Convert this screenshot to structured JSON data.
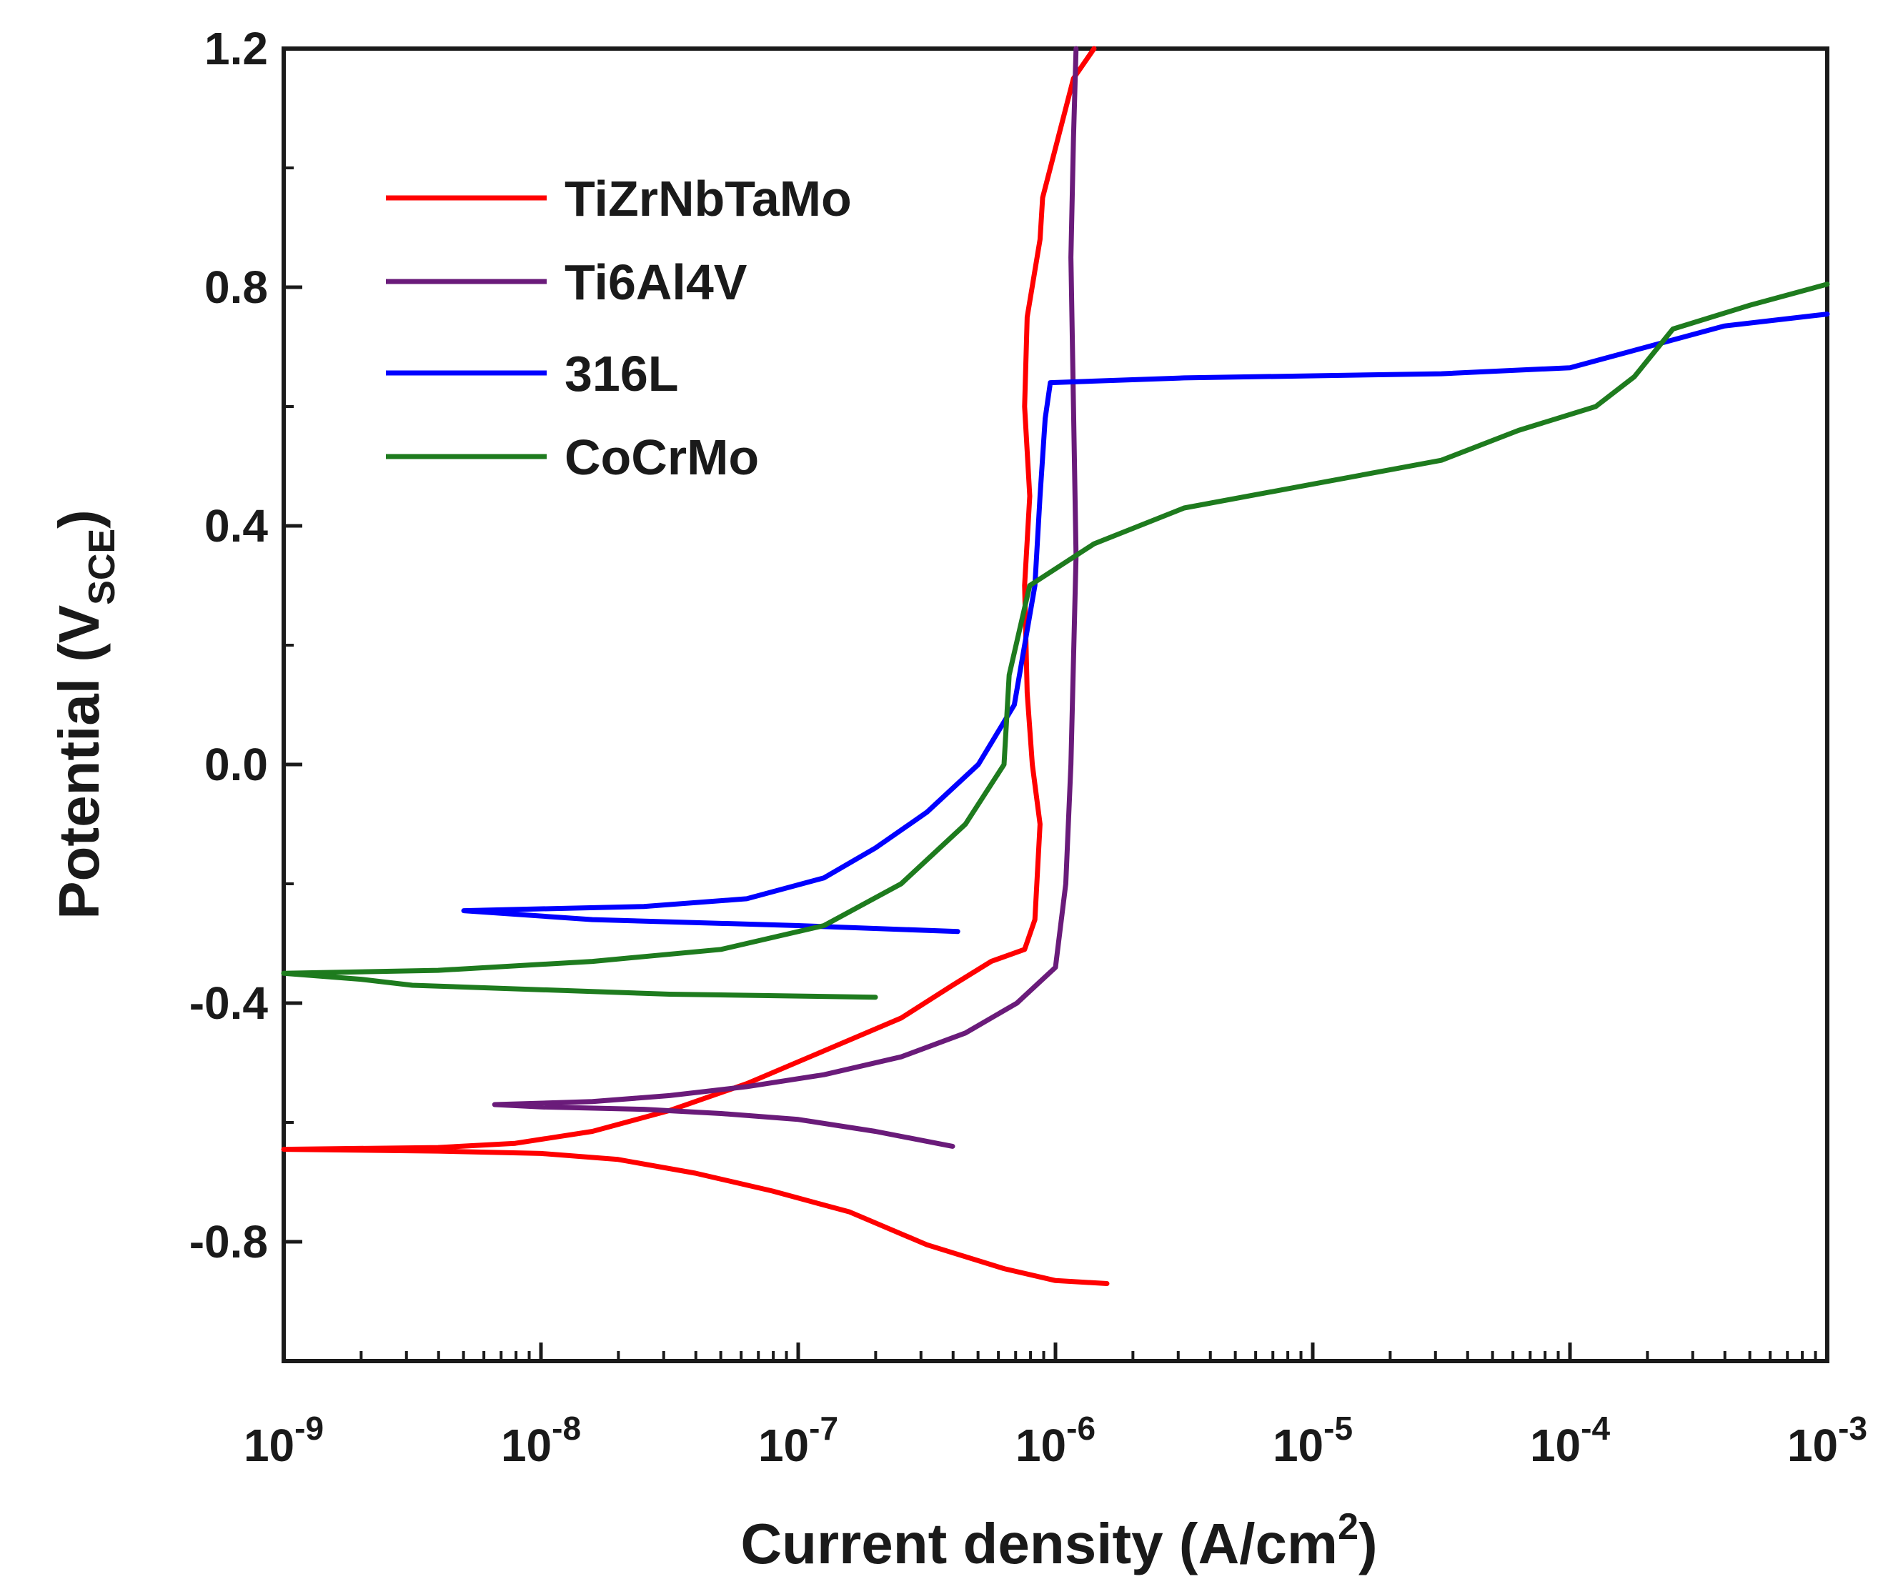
{
  "chart_data": {
    "type": "line",
    "title": "",
    "xlabel": {
      "main": "Current density (A/cm",
      "sup": "2",
      "end": ")"
    },
    "ylabel": {
      "main": "Potential (V",
      "sub": "SCE",
      "end": ")"
    },
    "x_scale": "log",
    "xlim_exp": [
      -9,
      -3
    ],
    "ylim": [
      -1.0,
      1.2
    ],
    "x_ticks": [
      {
        "base": "10",
        "exp": "-9"
      },
      {
        "base": "10",
        "exp": "-8"
      },
      {
        "base": "10",
        "exp": "-7"
      },
      {
        "base": "10",
        "exp": "-6"
      },
      {
        "base": "10",
        "exp": "-5"
      },
      {
        "base": "10",
        "exp": "-4"
      },
      {
        "base": "10",
        "exp": "-3"
      }
    ],
    "y_ticks": [
      "1.2",
      "0.8",
      "0.4",
      "0.0",
      "-0.4",
      "-0.8"
    ],
    "y_tick_values": [
      1.2,
      0.8,
      0.4,
      0.0,
      -0.4,
      -0.8
    ],
    "legend_position": "top-left",
    "grid": false,
    "series": [
      {
        "name": "TiZrNbTaMo",
        "color": "#ff0000",
        "points": [
          [
            -5.8,
            -0.87
          ],
          [
            -6.0,
            -0.865
          ],
          [
            -6.2,
            -0.845
          ],
          [
            -6.5,
            -0.805
          ],
          [
            -6.8,
            -0.75
          ],
          [
            -7.1,
            -0.715
          ],
          [
            -7.4,
            -0.685
          ],
          [
            -7.7,
            -0.662
          ],
          [
            -8.0,
            -0.652
          ],
          [
            -8.4,
            -0.648
          ],
          [
            -9.0,
            -0.645
          ],
          [
            -8.4,
            -0.642
          ],
          [
            -8.1,
            -0.635
          ],
          [
            -7.8,
            -0.615
          ],
          [
            -7.5,
            -0.58
          ],
          [
            -7.2,
            -0.535
          ],
          [
            -6.9,
            -0.48
          ],
          [
            -6.6,
            -0.425
          ],
          [
            -6.4,
            -0.37
          ],
          [
            -6.25,
            -0.33
          ],
          [
            -6.12,
            -0.31
          ],
          [
            -6.08,
            -0.26
          ],
          [
            -6.06,
            -0.1
          ],
          [
            -6.09,
            0.0
          ],
          [
            -6.11,
            0.12
          ],
          [
            -6.12,
            0.3
          ],
          [
            -6.1,
            0.45
          ],
          [
            -6.12,
            0.6
          ],
          [
            -6.11,
            0.75
          ],
          [
            -6.06,
            0.88
          ],
          [
            -6.05,
            0.95
          ],
          [
            -5.99,
            1.05
          ],
          [
            -5.93,
            1.15
          ],
          [
            -5.85,
            1.2
          ]
        ]
      },
      {
        "name": "Ti6Al4V",
        "color": "#6a1b7a",
        "points": [
          [
            -6.4,
            -0.64
          ],
          [
            -6.7,
            -0.615
          ],
          [
            -7.0,
            -0.595
          ],
          [
            -7.3,
            -0.585
          ],
          [
            -7.6,
            -0.578
          ],
          [
            -8.0,
            -0.574
          ],
          [
            -8.18,
            -0.57
          ],
          [
            -7.8,
            -0.565
          ],
          [
            -7.5,
            -0.555
          ],
          [
            -7.2,
            -0.54
          ],
          [
            -6.9,
            -0.52
          ],
          [
            -6.6,
            -0.49
          ],
          [
            -6.35,
            -0.45
          ],
          [
            -6.15,
            -0.4
          ],
          [
            -6.0,
            -0.34
          ],
          [
            -5.96,
            -0.2
          ],
          [
            -5.94,
            0.0
          ],
          [
            -5.92,
            0.35
          ],
          [
            -5.93,
            0.6
          ],
          [
            -5.94,
            0.85
          ],
          [
            -5.93,
            1.05
          ],
          [
            -5.92,
            1.2
          ]
        ]
      },
      {
        "name": "316L",
        "color": "#0000ff",
        "points": [
          [
            -6.38,
            -0.28
          ],
          [
            -7.0,
            -0.27
          ],
          [
            -7.8,
            -0.26
          ],
          [
            -8.3,
            -0.245
          ],
          [
            -7.6,
            -0.238
          ],
          [
            -7.2,
            -0.225
          ],
          [
            -6.9,
            -0.19
          ],
          [
            -6.7,
            -0.14
          ],
          [
            -6.5,
            -0.08
          ],
          [
            -6.3,
            0.0
          ],
          [
            -6.16,
            0.1
          ],
          [
            -6.08,
            0.3
          ],
          [
            -6.06,
            0.45
          ],
          [
            -6.04,
            0.58
          ],
          [
            -6.02,
            0.64
          ],
          [
            -5.5,
            0.648
          ],
          [
            -4.5,
            0.655
          ],
          [
            -4.0,
            0.665
          ],
          [
            -3.7,
            0.7
          ],
          [
            -3.4,
            0.735
          ],
          [
            -3.0,
            0.755
          ]
        ]
      },
      {
        "name": "CoCrMo",
        "color": "#1e7b1e",
        "points": [
          [
            -6.7,
            -0.39
          ],
          [
            -7.5,
            -0.385
          ],
          [
            -8.5,
            -0.37
          ],
          [
            -8.7,
            -0.36
          ],
          [
            -9.0,
            -0.35
          ],
          [
            -8.4,
            -0.345
          ],
          [
            -7.8,
            -0.33
          ],
          [
            -7.3,
            -0.31
          ],
          [
            -6.9,
            -0.27
          ],
          [
            -6.6,
            -0.2
          ],
          [
            -6.35,
            -0.1
          ],
          [
            -6.2,
            0.0
          ],
          [
            -6.18,
            0.15
          ],
          [
            -6.1,
            0.3
          ],
          [
            -5.85,
            0.37
          ],
          [
            -5.5,
            0.43
          ],
          [
            -5.0,
            0.47
          ],
          [
            -4.5,
            0.51
          ],
          [
            -4.2,
            0.56
          ],
          [
            -3.9,
            0.6
          ],
          [
            -3.75,
            0.65
          ],
          [
            -3.6,
            0.73
          ],
          [
            -3.3,
            0.77
          ],
          [
            -3.0,
            0.805
          ]
        ]
      }
    ]
  }
}
